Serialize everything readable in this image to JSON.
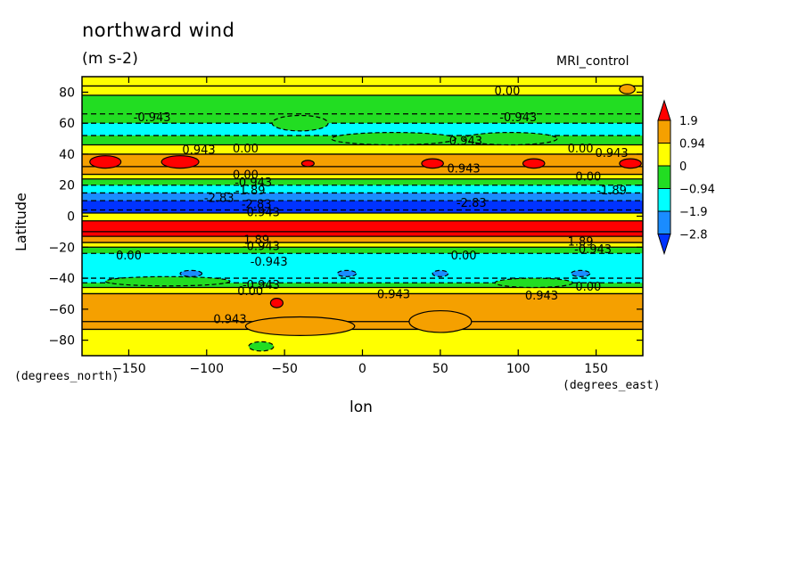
{
  "chart_data": {
    "type": "heatmap",
    "title": "northward wind",
    "units_label": "(m s-2)",
    "source_label": "MRI_control",
    "xlabel": "lon",
    "ylabel": "Latitude",
    "x_units": "(degrees_east)",
    "y_units": "(degrees_north)",
    "xlim": [
      -180,
      180
    ],
    "ylim": [
      -90,
      90
    ],
    "x_ticks": [
      -150,
      -100,
      -50,
      0,
      50,
      100,
      150
    ],
    "y_ticks": [
      80,
      60,
      40,
      20,
      0,
      -20,
      -40,
      -60,
      -80
    ],
    "colorbar": {
      "levels": [
        "1.9",
        "0.94",
        "0",
        "-0.94",
        "-1.9",
        "-2.8"
      ],
      "colors": [
        "#ff0000",
        "#f5a000",
        "#ffff00",
        "#22dd22",
        "#00ffff",
        "#1a8cff",
        "#0033ff"
      ]
    },
    "latitude_profile": [
      {
        "lat": 90,
        "level": 2
      },
      {
        "lat": 84,
        "level": 2
      },
      {
        "lat": 78,
        "level": 3
      },
      {
        "lat": 66,
        "level": 3
      },
      {
        "lat": 60,
        "level": 4
      },
      {
        "lat": 52,
        "level": 3
      },
      {
        "lat": 46,
        "level": 2
      },
      {
        "lat": 40,
        "level": 1
      },
      {
        "lat": 32,
        "level": 1
      },
      {
        "lat": 27,
        "level": 2
      },
      {
        "lat": 24,
        "level": 3
      },
      {
        "lat": 20,
        "level": 4
      },
      {
        "lat": 15,
        "level": 5
      },
      {
        "lat": 10,
        "level": 6
      },
      {
        "lat": 4,
        "level": 6
      },
      {
        "lat": 2,
        "level": 2
      },
      {
        "lat": -3,
        "level": 0
      },
      {
        "lat": -10,
        "level": 0
      },
      {
        "lat": -13,
        "level": 1
      },
      {
        "lat": -17,
        "level": 2
      },
      {
        "lat": -20,
        "level": 3
      },
      {
        "lat": -24,
        "level": 4
      },
      {
        "lat": -40,
        "level": 4
      },
      {
        "lat": -43,
        "level": 3
      },
      {
        "lat": -46,
        "level": 2
      },
      {
        "lat": -50,
        "level": 1
      },
      {
        "lat": -68,
        "level": 1
      },
      {
        "lat": -73,
        "level": 2
      },
      {
        "lat": -90,
        "level": 2
      }
    ],
    "blobs": [
      {
        "lon": -165,
        "lat": 35,
        "rlon": 10,
        "rlat": 4,
        "level": 0
      },
      {
        "lon": -117,
        "lat": 35,
        "rlon": 12,
        "rlat": 4,
        "level": 0
      },
      {
        "lon": -35,
        "lat": 34,
        "rlon": 4,
        "rlat": 2,
        "level": 0
      },
      {
        "lon": 45,
        "lat": 34,
        "rlon": 7,
        "rlat": 3,
        "level": 0
      },
      {
        "lon": 110,
        "lat": 34,
        "rlon": 7,
        "rlat": 3,
        "level": 0
      },
      {
        "lon": 172,
        "lat": 34,
        "rlon": 7,
        "rlat": 3,
        "level": 0
      },
      {
        "lon": -55,
        "lat": -56,
        "rlon": 4,
        "rlat": 3,
        "level": 0
      },
      {
        "lon": 170,
        "lat": 82,
        "rlon": 5,
        "rlat": 3,
        "level": 1
      },
      {
        "lon": -40,
        "lat": -71,
        "rlon": 35,
        "rlat": 6,
        "level": 1
      },
      {
        "lon": 50,
        "lat": -68,
        "rlon": 20,
        "rlat": 7,
        "level": 1
      },
      {
        "lon": -40,
        "lat": 60,
        "rlon": 18,
        "rlat": 5,
        "level": 3
      },
      {
        "lon": 20,
        "lat": 50,
        "rlon": 40,
        "rlat": 4,
        "level": 3
      },
      {
        "lon": 95,
        "lat": 50,
        "rlon": 30,
        "rlat": 4,
        "level": 3
      },
      {
        "lon": -125,
        "lat": -42,
        "rlon": 40,
        "rlat": 3,
        "level": 3
      },
      {
        "lon": 110,
        "lat": -43,
        "rlon": 25,
        "rlat": 3,
        "level": 3
      },
      {
        "lon": -65,
        "lat": -84,
        "rlon": 8,
        "rlat": 3,
        "level": 3
      },
      {
        "lon": -110,
        "lat": -37,
        "rlon": 7,
        "rlat": 2,
        "level": 5
      },
      {
        "lon": -10,
        "lat": -37,
        "rlon": 6,
        "rlat": 2,
        "level": 5
      },
      {
        "lon": 50,
        "lat": -37,
        "rlon": 5,
        "rlat": 2,
        "level": 5
      },
      {
        "lon": 140,
        "lat": -37,
        "rlon": 6,
        "rlat": 2,
        "level": 5
      }
    ],
    "contour_labels": [
      {
        "text": "-0.943",
        "lon": -135,
        "lat": 64
      },
      {
        "text": "0.00",
        "lon": 93,
        "lat": 81
      },
      {
        "text": "-0.943",
        "lon": 100,
        "lat": 64
      },
      {
        "text": "-0.943",
        "lon": 65,
        "lat": 49
      },
      {
        "text": "0.943",
        "lon": -105,
        "lat": 43
      },
      {
        "text": "0.00",
        "lon": -75,
        "lat": 44
      },
      {
        "text": "0.00",
        "lon": 140,
        "lat": 44
      },
      {
        "text": "0.943",
        "lon": 160,
        "lat": 41
      },
      {
        "text": "0.00",
        "lon": -75,
        "lat": 27
      },
      {
        "text": "-0.943",
        "lon": -70,
        "lat": 22
      },
      {
        "text": "0.943",
        "lon": 65,
        "lat": 31
      },
      {
        "text": "0.00",
        "lon": 145,
        "lat": 26
      },
      {
        "text": "-1.89",
        "lon": -72,
        "lat": 17
      },
      {
        "text": "-1.89",
        "lon": 160,
        "lat": 17
      },
      {
        "text": "-2.83",
        "lon": -92,
        "lat": 12
      },
      {
        "text": "-2.83",
        "lon": -68,
        "lat": 8
      },
      {
        "text": "-2.83",
        "lon": 70,
        "lat": 9
      },
      {
        "text": "-0.943",
        "lon": -65,
        "lat": 3
      },
      {
        "text": "1.89",
        "lon": -68,
        "lat": -15
      },
      {
        "text": "-0.943",
        "lon": -65,
        "lat": -19
      },
      {
        "text": "1.89",
        "lon": 140,
        "lat": -16
      },
      {
        "text": "-0.943",
        "lon": 148,
        "lat": -21
      },
      {
        "text": "0.00",
        "lon": -150,
        "lat": -25
      },
      {
        "text": "-0.943",
        "lon": -60,
        "lat": -29
      },
      {
        "text": "0.00",
        "lon": 65,
        "lat": -25
      },
      {
        "text": "-0.943",
        "lon": -65,
        "lat": -44
      },
      {
        "text": "0.00",
        "lon": -72,
        "lat": -48
      },
      {
        "text": "0.943",
        "lon": 20,
        "lat": -50
      },
      {
        "text": "0.943",
        "lon": 115,
        "lat": -51
      },
      {
        "text": "0.00",
        "lon": 145,
        "lat": -45
      },
      {
        "text": "0.943",
        "lon": -85,
        "lat": -66
      }
    ]
  }
}
